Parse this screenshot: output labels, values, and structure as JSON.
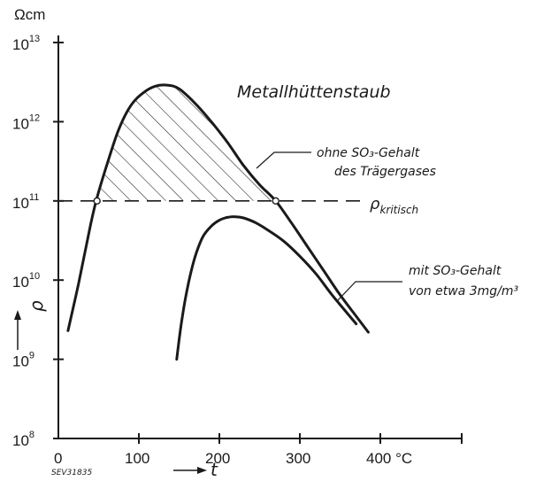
{
  "chart_data": {
    "type": "line",
    "title": "Metallhüttenstaub",
    "y_unit": "Ωcm",
    "ylabel": "ρ",
    "xlabel": "t",
    "x_unit": "°C",
    "y_log": true,
    "xlim": [
      0,
      500
    ],
    "ylim": [
      100000000,
      10000000000000
    ],
    "x_ticks": [
      0,
      100,
      200,
      300,
      400
    ],
    "y_ticks": [
      {
        "value": 100000000,
        "base": "10",
        "exp": "8"
      },
      {
        "value": 1000000000,
        "base": "10",
        "exp": "9"
      },
      {
        "value": 10000000000,
        "base": "10",
        "exp": "10"
      },
      {
        "value": 100000000000,
        "base": "10",
        "exp": "11"
      },
      {
        "value": 1000000000000,
        "base": "10",
        "exp": "12"
      },
      {
        "value": 10000000000000,
        "base": "10",
        "exp": "13"
      }
    ],
    "x_tick_labels": [
      "0",
      "100",
      "200",
      "300",
      "400 °C"
    ],
    "series": [
      {
        "name": "ohne SO₃-Gehalt des Trägergases",
        "label_lines": [
          "ohne SO₃-Gehalt",
          "des Trägergases"
        ],
        "x": [
          12,
          25,
          40,
          48,
          60,
          75,
          90,
          105,
          120,
          135,
          150,
          170,
          190,
          210,
          230,
          250,
          270,
          290,
          310,
          330,
          350,
          370,
          385
        ],
        "y": [
          2300000000,
          9000000000,
          50000000000,
          110000000000,
          280000000000,
          800000000000,
          1600000000000,
          2300000000000,
          2800000000000,
          2900000000000,
          2600000000000,
          1700000000000,
          1000000000000,
          550000000000,
          280000000000,
          160000000000,
          100000000000,
          52000000000,
          26000000000,
          13000000000,
          6500000000,
          3500000000,
          2200000000
        ]
      },
      {
        "name": "mit SO₃-Gehalt von etwa 3mg/m³",
        "label_lines": [
          "mit SO₃-Gehalt",
          "von etwa 3mg/m³"
        ],
        "x": [
          147,
          152,
          158,
          165,
          172,
          180,
          190,
          200,
          210,
          220,
          230,
          245,
          260,
          280,
          300,
          320,
          340,
          360,
          370
        ],
        "y": [
          1000000000,
          2500000000,
          6000000000,
          13000000000,
          23000000000,
          36000000000,
          48000000000,
          57000000000,
          62000000000,
          63000000000,
          61000000000,
          53000000000,
          43000000000,
          31000000000,
          20000000000,
          12000000000,
          6500000000,
          3700000000,
          2800000000
        ]
      }
    ],
    "reference_line": {
      "name": "ρkritisch",
      "label_main": "ρ",
      "label_sub": "kritisch",
      "value": 100000000000,
      "style": "dashed"
    },
    "intersection_points": [
      {
        "x": 48,
        "y": 100000000000
      },
      {
        "x": 270,
        "y": 100000000000
      }
    ],
    "hatched_region": "area between upper curve and ρkritisch line",
    "annotations": [
      "SEV31835"
    ]
  }
}
